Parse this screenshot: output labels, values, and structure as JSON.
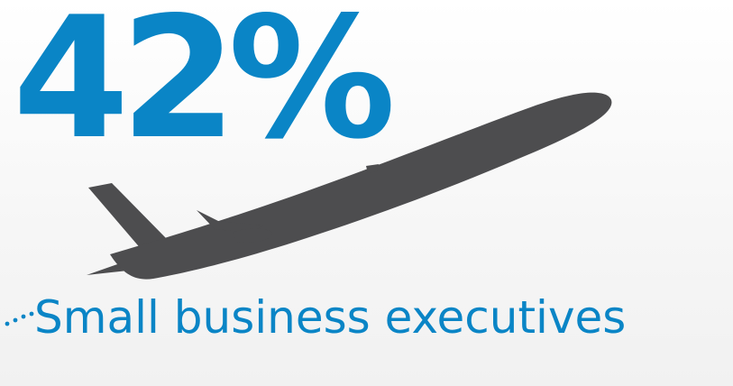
{
  "statistic": {
    "value": "42%",
    "color": "#0a85c6"
  },
  "caption": {
    "text": "Small business executives",
    "color": "#0a85c6"
  },
  "illustration": {
    "icon": "airplane-icon",
    "color": "#4d4d4f"
  },
  "decoration": {
    "icon": "dotted-trail",
    "color": "#0a85c6"
  }
}
